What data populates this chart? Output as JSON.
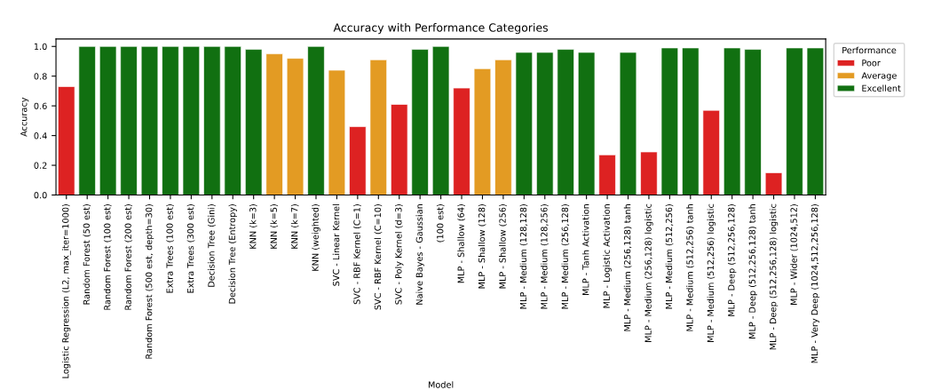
{
  "chart_data": {
    "type": "bar",
    "title": "Accuracy with Performance Categories",
    "xlabel": "Model",
    "ylabel": "Accuracy",
    "legend_title": "Performance",
    "categories": [
      "Logistic Regression (L2, max_iter=1000)",
      "Random Forest (50 est)",
      "Random Forest (100 est)",
      "Random Forest (200 est)",
      "Random Forest (500 est, depth=30)",
      "Extra Trees (100 est)",
      "Extra Trees (300 est)",
      "Decision Tree (Gini)",
      "Decision Tree (Entropy)",
      "KNN (k=3)",
      "KNN (k=5)",
      "KNN (k=7)",
      "KNN (weighted)",
      "SVC - Linear Kernel",
      "SVC - RBF Kernel (C=1)",
      "SVC - RBF Kernel (C=10)",
      "SVC - Poly Kernel (d=3)",
      "Naive Bayes - Gaussian",
      "(100 est)",
      "MLP - Shallow (64)",
      "MLP - Shallow (128)",
      "MLP - Shallow (256)",
      "MLP - Medium (128,128)",
      "MLP - Medium (128,256)",
      "MLP - Medium (256,128)",
      "MLP - Tanh Activation",
      "MLP - Logistic Activation",
      "MLP - Medium (256,128) tanh",
      "MLP - Medium (256,128) logistic",
      "MLP - Medium (512,256)",
      "MLP - Medium (512,256) tanh",
      "MLP - Medium (512,256) logistic",
      "MLP - Deep (512,256,128)",
      "MLP - Deep (512,256,128) tanh",
      "MLP - Deep (512,256,128) logistic",
      "MLP - Wider (1024,512)",
      "MLP - Very Deep (1024,512,256,128)"
    ],
    "series": [
      {
        "name": "Poor",
        "color": "#dd2222",
        "values": [
          0.73,
          null,
          null,
          null,
          null,
          null,
          null,
          null,
          null,
          null,
          null,
          null,
          null,
          null,
          0.46,
          null,
          0.61,
          null,
          null,
          0.72,
          null,
          null,
          null,
          null,
          null,
          null,
          0.27,
          null,
          0.29,
          null,
          null,
          0.57,
          null,
          null,
          0.15,
          null,
          null
        ]
      },
      {
        "name": "Average",
        "color": "#e39b23",
        "values": [
          null,
          null,
          null,
          null,
          null,
          null,
          null,
          null,
          null,
          null,
          0.95,
          0.92,
          null,
          0.84,
          null,
          0.91,
          null,
          null,
          null,
          null,
          0.85,
          0.91,
          null,
          null,
          null,
          null,
          null,
          null,
          null,
          null,
          null,
          null,
          null,
          null,
          null,
          null,
          null
        ]
      },
      {
        "name": "Excellent",
        "color": "#117011",
        "values": [
          null,
          1.0,
          1.0,
          1.0,
          1.0,
          1.0,
          1.0,
          1.0,
          1.0,
          0.98,
          null,
          null,
          1.0,
          null,
          null,
          null,
          null,
          0.98,
          1.0,
          null,
          null,
          null,
          0.96,
          0.96,
          0.98,
          0.96,
          null,
          0.96,
          null,
          0.99,
          0.99,
          null,
          0.99,
          0.98,
          null,
          0.99,
          0.99
        ]
      }
    ],
    "ylim": [
      0,
      1.05
    ],
    "yticks": [
      {
        "value": 0,
        "label": "0.0"
      },
      {
        "value": 0.2,
        "label": "0.2"
      },
      {
        "value": 0.4,
        "label": "0.4"
      },
      {
        "value": 0.6,
        "label": "0.6"
      },
      {
        "value": 0.8,
        "label": "0.8"
      },
      {
        "value": 1,
        "label": "1.0"
      }
    ],
    "grid": false,
    "legend": "top right"
  }
}
